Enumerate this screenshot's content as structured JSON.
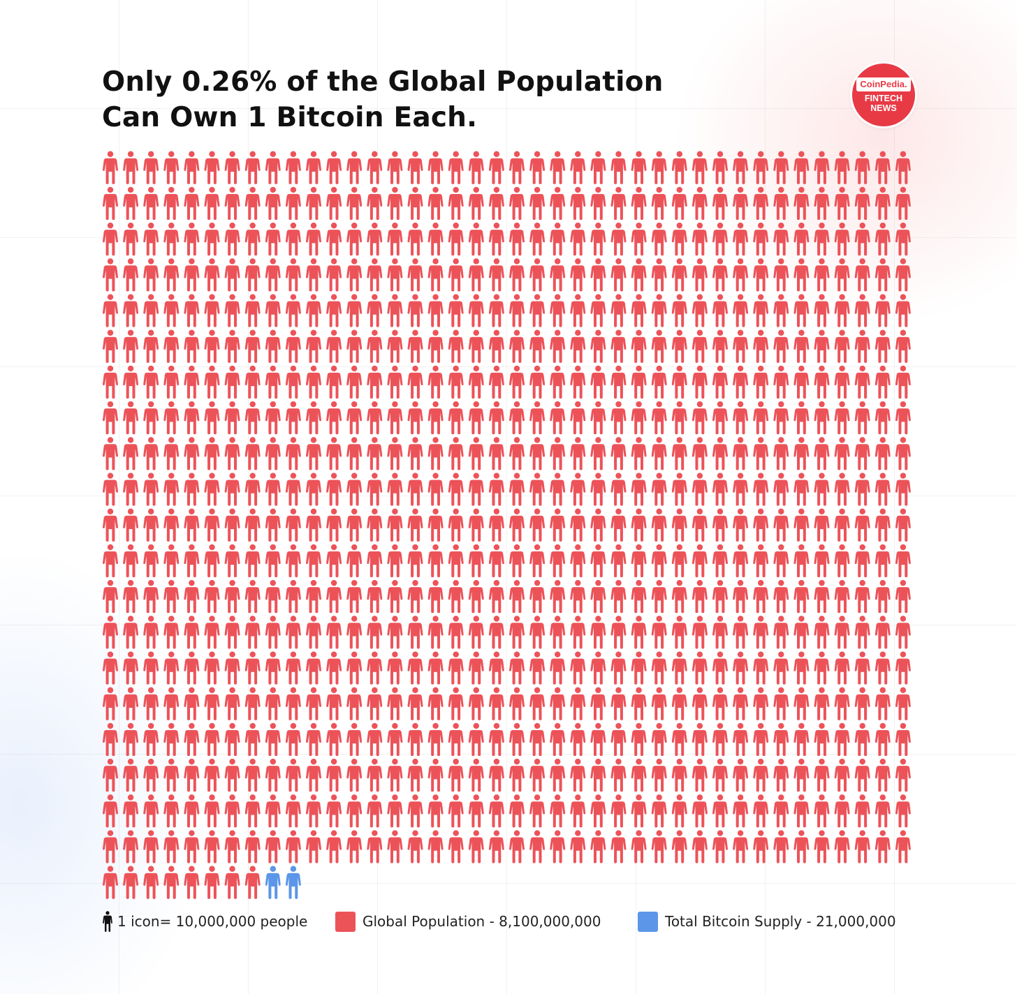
{
  "title": {
    "line1": "Only 0.26% of the Global Population",
    "line2": "Can Own 1 Bitcoin Each."
  },
  "logo": {
    "brand": "CoinPedia.",
    "line1": "FINTECH",
    "line2": "NEWS"
  },
  "chart_data": {
    "type": "pictograph",
    "icon_name": "person-icon",
    "units_per_icon": 10000000,
    "total_icons": 810,
    "columns": 40,
    "series": [
      {
        "name": "Global Population - 8,100,000,000",
        "value": 8100000000,
        "icons": 808,
        "color": "#ec5359"
      },
      {
        "name": "Total Bitcoin Supply - 21,000,000",
        "value": 21000000,
        "icons": 2,
        "color": "#5b96e8"
      }
    ]
  },
  "legend": {
    "icon_label": "1 icon= 10,000,000 people",
    "population_label": "Global Population - 8,100,000,000",
    "supply_label": "Total Bitcoin Supply - 21,000,000",
    "population_color": "#ec5359",
    "supply_color": "#5b96e8"
  }
}
